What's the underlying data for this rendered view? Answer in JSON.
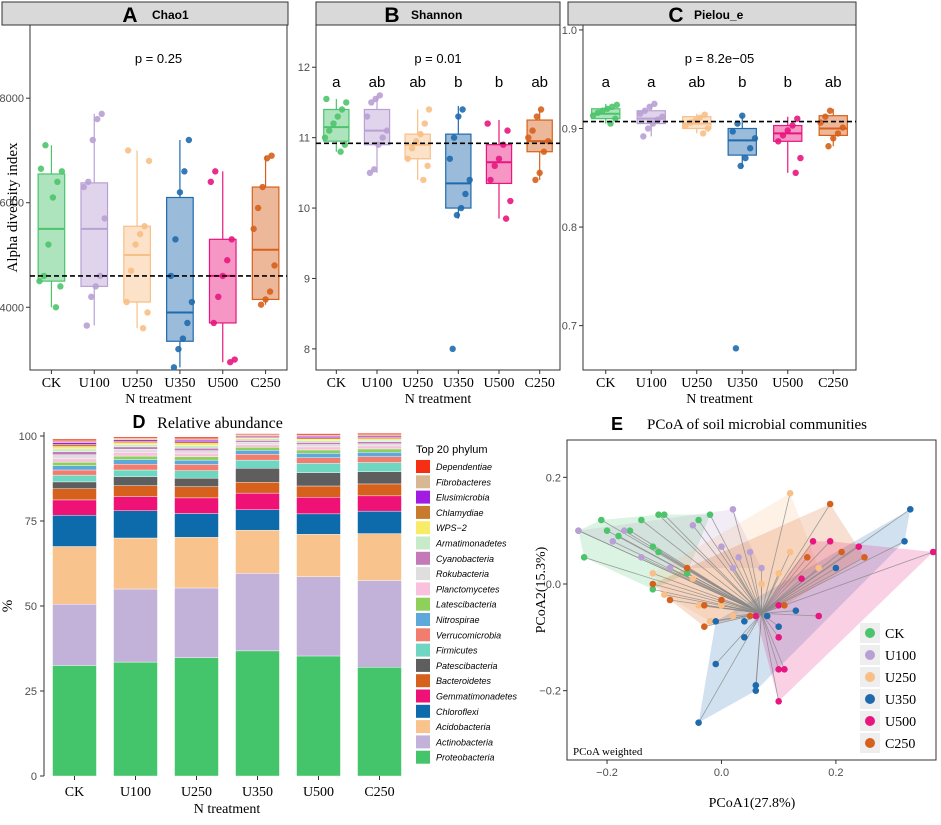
{
  "colors": {
    "CK": "#4cc46c",
    "U100": "#b9a0d4",
    "U250": "#f8bf86",
    "U350": "#1f6aad",
    "U500": "#e8167f",
    "C250": "#d6611c"
  },
  "chart_data": [
    {
      "id": "A",
      "type": "box",
      "title": "Chao1",
      "panel_label": "A",
      "p_label": "p = 0.25",
      "ylabel": "Alpha diversity index",
      "xlabel": "N treatment",
      "ylim": [
        2800,
        9400
      ],
      "yticks": [
        4000,
        6000,
        8000
      ],
      "ref_line": 4600,
      "groups": [
        {
          "name": "CK",
          "q1": 4500,
          "median": 5500,
          "q3": 6550,
          "wmin": 4000,
          "wmax": 7100,
          "points": [
            4000,
            4400,
            4500,
            4600,
            5200,
            6100,
            6400,
            6600,
            6650,
            7100
          ],
          "letter": ""
        },
        {
          "name": "U100",
          "q1": 4400,
          "median": 5500,
          "q3": 6380,
          "wmin": 3650,
          "wmax": 7700,
          "points": [
            3650,
            4200,
            4400,
            4600,
            5700,
            6300,
            6400,
            7200,
            7600,
            7700
          ],
          "letter": ""
        },
        {
          "name": "U250",
          "q1": 4100,
          "median": 5000,
          "q3": 5550,
          "wmin": 3600,
          "wmax": 7000,
          "points": [
            3600,
            3900,
            4100,
            4700,
            5200,
            5400,
            5550,
            6800,
            7000
          ],
          "letter": ""
        },
        {
          "name": "U350",
          "q1": 3350,
          "median": 3900,
          "q3": 6100,
          "wmin": 2850,
          "wmax": 7200,
          "points": [
            2850,
            3200,
            3400,
            3700,
            4100,
            4600,
            5300,
            6200,
            6600,
            7200
          ],
          "letter": ""
        },
        {
          "name": "U500",
          "q1": 3700,
          "median": 4600,
          "q3": 5300,
          "wmin": 2950,
          "wmax": 6600,
          "points": [
            2950,
            3000,
            3700,
            4200,
            4600,
            4900,
            5300,
            6400,
            6600
          ],
          "letter": ""
        },
        {
          "name": "C250",
          "q1": 4150,
          "median": 5100,
          "q3": 6300,
          "wmin": 4050,
          "wmax": 6900,
          "points": [
            4050,
            4150,
            4300,
            4800,
            5500,
            5900,
            6300,
            6850,
            6900
          ],
          "letter": ""
        }
      ]
    },
    {
      "id": "B",
      "type": "box",
      "title": "Shannon",
      "panel_label": "B",
      "p_label": "p = 0.01",
      "ylabel": "",
      "xlabel": "N treatment",
      "ylim": [
        7.7,
        12.6
      ],
      "yticks": [
        8,
        9,
        10,
        11,
        12
      ],
      "ref_line": 10.92,
      "groups": [
        {
          "name": "CK",
          "q1": 10.95,
          "median": 11.15,
          "q3": 11.4,
          "wmin": 10.8,
          "wmax": 11.55,
          "points": [
            10.8,
            10.9,
            11.0,
            11.1,
            11.2,
            11.3,
            11.4,
            11.5,
            11.55
          ],
          "letter": "a"
        },
        {
          "name": "U100",
          "q1": 10.9,
          "median": 11.1,
          "q3": 11.4,
          "wmin": 10.5,
          "wmax": 11.6,
          "points": [
            10.5,
            10.55,
            10.9,
            11.0,
            11.1,
            11.3,
            11.5,
            11.55,
            11.6
          ],
          "letter": "ab"
        },
        {
          "name": "U250",
          "q1": 10.7,
          "median": 10.9,
          "q3": 11.05,
          "wmin": 10.4,
          "wmax": 11.4,
          "points": [
            10.4,
            10.6,
            10.7,
            10.85,
            10.95,
            11.05,
            11.2,
            11.4
          ],
          "letter": "ab"
        },
        {
          "name": "U350",
          "q1": 10.0,
          "median": 10.35,
          "q3": 11.05,
          "wmin": 9.85,
          "wmax": 11.45,
          "points": [
            8.0,
            9.9,
            10.0,
            10.2,
            10.4,
            10.7,
            11.0,
            11.3,
            11.4
          ],
          "letter": "b"
        },
        {
          "name": "U500",
          "q1": 10.35,
          "median": 10.65,
          "q3": 10.9,
          "wmin": 9.85,
          "wmax": 11.25,
          "points": [
            9.85,
            10.1,
            10.4,
            10.6,
            10.7,
            10.9,
            11.1,
            11.2
          ],
          "letter": "b"
        },
        {
          "name": "C250",
          "q1": 10.8,
          "median": 10.95,
          "q3": 11.25,
          "wmin": 10.4,
          "wmax": 11.4,
          "points": [
            10.4,
            10.5,
            10.8,
            10.95,
            11.0,
            11.1,
            11.3,
            11.4
          ],
          "letter": "ab"
        }
      ]
    },
    {
      "id": "C",
      "type": "box",
      "title": "Pielou_e",
      "panel_label": "C",
      "p_label": "p = 8.2e−05",
      "ylabel": "",
      "xlabel": "N treatment",
      "ylim": [
        0.655,
        1.005
      ],
      "yticks": [
        0.7,
        0.8,
        0.9,
        1.0
      ],
      "ytick_labels": [
        "0.7",
        "0.8",
        "0.9",
        "1.0"
      ],
      "ref_line": 0.907,
      "groups": [
        {
          "name": "CK",
          "q1": 0.91,
          "median": 0.915,
          "q3": 0.92,
          "wmin": 0.905,
          "wmax": 0.925,
          "points": [
            0.905,
            0.91,
            0.913,
            0.916,
            0.918,
            0.92,
            0.922,
            0.924
          ],
          "letter": "a"
        },
        {
          "name": "U100",
          "q1": 0.905,
          "median": 0.91,
          "q3": 0.918,
          "wmin": 0.892,
          "wmax": 0.925,
          "points": [
            0.892,
            0.9,
            0.905,
            0.909,
            0.912,
            0.915,
            0.918,
            0.922,
            0.925
          ],
          "letter": "a"
        },
        {
          "name": "U250",
          "q1": 0.9,
          "median": 0.905,
          "q3": 0.912,
          "wmin": 0.895,
          "wmax": 0.915,
          "points": [
            0.895,
            0.9,
            0.903,
            0.906,
            0.908,
            0.911,
            0.914
          ],
          "letter": "ab"
        },
        {
          "name": "U350",
          "q1": 0.873,
          "median": 0.888,
          "q3": 0.9,
          "wmin": 0.86,
          "wmax": 0.913,
          "points": [
            0.677,
            0.862,
            0.87,
            0.88,
            0.89,
            0.897,
            0.905,
            0.913
          ],
          "letter": "b"
        },
        {
          "name": "U500",
          "q1": 0.887,
          "median": 0.895,
          "q3": 0.903,
          "wmin": 0.855,
          "wmax": 0.912,
          "points": [
            0.855,
            0.87,
            0.887,
            0.893,
            0.898,
            0.903,
            0.91
          ],
          "letter": "b"
        },
        {
          "name": "C250",
          "q1": 0.893,
          "median": 0.9,
          "q3": 0.913,
          "wmin": 0.882,
          "wmax": 0.92,
          "points": [
            0.882,
            0.89,
            0.895,
            0.901,
            0.906,
            0.912,
            0.918
          ],
          "letter": "ab"
        }
      ]
    },
    {
      "id": "D",
      "type": "stacked_bar",
      "panel_label": "D",
      "title": "Relative abundance",
      "xlabel": "N treatment",
      "ylabel": "%",
      "ylim": [
        0,
        100
      ],
      "yticks": [
        0,
        25,
        50,
        75,
        100
      ],
      "legend_title": "Top 20 phylum",
      "categories": [
        "CK",
        "U100",
        "U250",
        "U350",
        "U500",
        "C250"
      ],
      "series": [
        {
          "name": "Proteobacteria",
          "color": "#44c56c",
          "values": [
            32.5,
            33.5,
            34.8,
            36.8,
            35.3,
            32.0
          ]
        },
        {
          "name": "Actinobacteria",
          "color": "#c2b1d9",
          "values": [
            18.0,
            21.5,
            20.5,
            22.8,
            23.3,
            25.5
          ]
        },
        {
          "name": "Acidobacteria",
          "color": "#f9c38e",
          "values": [
            17.0,
            15.0,
            14.9,
            12.7,
            12.5,
            13.8
          ]
        },
        {
          "name": "Chloroflexi",
          "color": "#0d6aab",
          "values": [
            9.2,
            8.0,
            7.0,
            6.0,
            6.0,
            6.6
          ]
        },
        {
          "name": "Gemmatimonadetes",
          "color": "#ef1276",
          "values": [
            4.5,
            4.2,
            4.6,
            4.9,
            4.9,
            4.5
          ]
        },
        {
          "name": "Bacteroidetes",
          "color": "#d6611d",
          "values": [
            3.3,
            3.2,
            3.3,
            3.2,
            3.3,
            3.5
          ]
        },
        {
          "name": "Patescibacteria",
          "color": "#5e5e5e",
          "values": [
            2.0,
            2.6,
            2.5,
            4.1,
            3.9,
            3.6
          ]
        },
        {
          "name": "Firmicutes",
          "color": "#6fd6c2",
          "values": [
            2.0,
            2.0,
            2.2,
            2.4,
            2.8,
            2.7
          ]
        },
        {
          "name": "Verrucomicrobia",
          "color": "#f27c6e",
          "values": [
            1.5,
            1.7,
            1.8,
            1.7,
            1.6,
            1.7
          ]
        },
        {
          "name": "Nitrospirae",
          "color": "#5fa8da",
          "values": [
            1.3,
            1.4,
            1.3,
            1.2,
            1.3,
            1.3
          ]
        },
        {
          "name": "Latescibacteria",
          "color": "#8fd05a",
          "values": [
            1.0,
            1.0,
            1.0,
            0.9,
            1.0,
            1.0
          ]
        },
        {
          "name": "Planctomycetes",
          "color": "#f9c1dd",
          "values": [
            1.0,
            1.1,
            1.0,
            0.8,
            0.9,
            0.9
          ]
        },
        {
          "name": "Rokubacteria",
          "color": "#dedede",
          "values": [
            1.2,
            0.9,
            0.8,
            0.7,
            0.7,
            0.6
          ]
        },
        {
          "name": "Cyanobacteria",
          "color": "#c47ab8",
          "values": [
            0.9,
            0.7,
            0.7,
            0.5,
            0.6,
            0.6
          ]
        },
        {
          "name": "Armatimonadetes",
          "color": "#c7ebc9",
          "values": [
            0.8,
            0.7,
            0.8,
            0.5,
            0.5,
            0.5
          ]
        },
        {
          "name": "WPS−2",
          "color": "#f8eb67",
          "values": [
            0.7,
            0.5,
            0.6,
            0.3,
            0.5,
            0.4
          ]
        },
        {
          "name": "Chlamydiae",
          "color": "#c97b2d",
          "values": [
            0.6,
            0.5,
            0.5,
            0.3,
            0.4,
            0.4
          ]
        },
        {
          "name": "Elusimicrobia",
          "color": "#a21be0",
          "values": [
            0.6,
            0.4,
            0.5,
            0.3,
            0.4,
            0.4
          ]
        },
        {
          "name": "Fibrobacteres",
          "color": "#d8b894",
          "values": [
            0.5,
            0.4,
            0.4,
            0.3,
            0.4,
            0.4
          ]
        },
        {
          "name": "Dependentiae",
          "color": "#f52e14",
          "values": [
            0.5,
            0.4,
            0.5,
            0.3,
            0.4,
            0.4
          ]
        }
      ]
    },
    {
      "id": "E",
      "type": "scatter",
      "panel_label": "E",
      "title": "PCoA of soil microbial communities",
      "xlabel": "PCoA1(27.8%)",
      "ylabel": "PCoA2(15.3%)",
      "note": "PCoA weighted",
      "xlim": [
        -0.27,
        0.375
      ],
      "ylim": [
        -0.33,
        0.27
      ],
      "xticks": [
        -0.2,
        0.0,
        0.2
      ],
      "xtick_labels": [
        "−0.2",
        "0.0",
        "0.2"
      ],
      "yticks": [
        -0.2,
        0.0,
        0.2
      ],
      "ytick_labels": [
        "−0.2",
        "0.0",
        "0.2"
      ],
      "centroid": [
        0.07,
        -0.055
      ],
      "groups": [
        {
          "name": "CK",
          "points": [
            [
              -0.24,
              0.05
            ],
            [
              -0.25,
              0.1
            ],
            [
              -0.21,
              0.12
            ],
            [
              -0.2,
              0.1
            ],
            [
              -0.18,
              0.09
            ],
            [
              -0.16,
              0.1
            ],
            [
              -0.14,
              0.12
            ],
            [
              -0.1,
              0.13
            ],
            [
              -0.04,
              0.12
            ],
            [
              -0.02,
              0.13
            ],
            [
              -0.12,
              0.07
            ],
            [
              -0.11,
              0.06
            ],
            [
              -0.06,
              0.02
            ],
            [
              -0.12,
              -0.01
            ],
            [
              -0.11,
              0.13
            ]
          ]
        },
        {
          "name": "U100",
          "points": [
            [
              -0.25,
              0.1
            ],
            [
              -0.19,
              0.08
            ],
            [
              -0.17,
              0.1
            ],
            [
              -0.14,
              0.05
            ],
            [
              -0.09,
              0.03
            ],
            [
              -0.05,
              0.11
            ],
            [
              0.02,
              0.14
            ],
            [
              0.05,
              0.06
            ],
            [
              0.02,
              0.03
            ],
            [
              0.0,
              0.07
            ],
            [
              0.03,
              0.05
            ],
            [
              0.07,
              0.03
            ]
          ]
        },
        {
          "name": "U250",
          "points": [
            [
              -0.12,
              0.02
            ],
            [
              -0.1,
              -0.02
            ],
            [
              -0.05,
              0.01
            ],
            [
              -0.04,
              -0.04
            ],
            [
              0.02,
              -0.06
            ],
            [
              0.07,
              0.0
            ],
            [
              0.1,
              0.02
            ],
            [
              0.12,
              0.06
            ],
            [
              0.12,
              0.17
            ],
            [
              0.17,
              0.03
            ],
            [
              0.0,
              -0.04
            ],
            [
              -0.02,
              -0.07
            ]
          ]
        },
        {
          "name": "U350",
          "points": [
            [
              -0.04,
              -0.26
            ],
            [
              -0.01,
              -0.15
            ],
            [
              0.06,
              -0.2
            ],
            [
              0.06,
              -0.19
            ],
            [
              0.04,
              -0.1
            ],
            [
              0.04,
              -0.07
            ],
            [
              -0.01,
              -0.07
            ],
            [
              0.08,
              -0.06
            ],
            [
              0.13,
              -0.05
            ],
            [
              0.2,
              0.03
            ],
            [
              0.33,
              0.14
            ],
            [
              0.32,
              0.08
            ],
            [
              0.1,
              -0.08
            ]
          ]
        },
        {
          "name": "U500",
          "points": [
            [
              0.1,
              -0.22
            ],
            [
              0.1,
              -0.16
            ],
            [
              0.11,
              -0.16
            ],
            [
              0.1,
              -0.1
            ],
            [
              0.1,
              -0.04
            ],
            [
              0.17,
              -0.06
            ],
            [
              0.19,
              0.08
            ],
            [
              0.24,
              0.07
            ],
            [
              0.37,
              0.06
            ],
            [
              0.16,
              0.08
            ],
            [
              0.14,
              0.01
            ],
            [
              0.06,
              -0.06
            ]
          ]
        },
        {
          "name": "C250",
          "points": [
            [
              -0.12,
              0.0
            ],
            [
              -0.09,
              -0.03
            ],
            [
              -0.06,
              0.03
            ],
            [
              -0.03,
              -0.04
            ],
            [
              -0.03,
              -0.08
            ],
            [
              0.0,
              -0.03
            ],
            [
              0.05,
              -0.06
            ],
            [
              0.11,
              -0.04
            ],
            [
              0.15,
              0.05
            ],
            [
              0.19,
              0.15
            ],
            [
              0.21,
              0.06
            ],
            [
              0.25,
              0.05
            ]
          ]
        }
      ]
    }
  ]
}
